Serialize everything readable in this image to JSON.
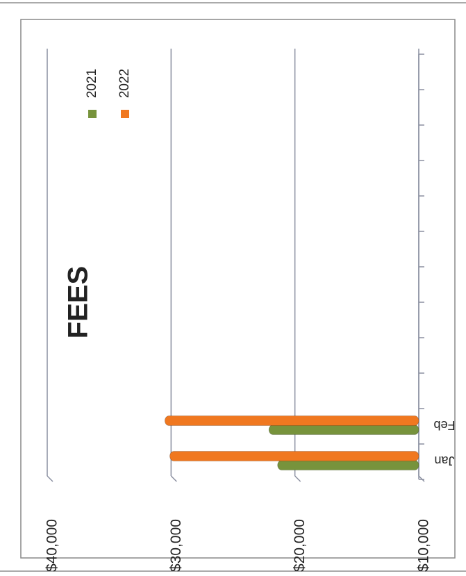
{
  "chart_data": {
    "type": "bar",
    "orientation": "horizontal",
    "title": "FEES",
    "categories": [
      "Jan",
      "Feb",
      null,
      null,
      null,
      null,
      null,
      null,
      null,
      null,
      null,
      null
    ],
    "series": [
      {
        "name": "2021",
        "color": "#77933c",
        "values": [
          21400,
          22100,
          null,
          null,
          null,
          null,
          null,
          null,
          null,
          null,
          null,
          null
        ]
      },
      {
        "name": "2022",
        "color": "#f07820",
        "values": [
          30100,
          30500,
          null,
          null,
          null,
          null,
          null,
          null,
          null,
          null,
          null,
          null
        ]
      }
    ],
    "ylim": [
      10000,
      40000
    ],
    "yticks": [
      {
        "value": 10000,
        "label": "$10,000"
      },
      {
        "value": 20000,
        "label": "$20,000"
      },
      {
        "value": 30000,
        "label": "$30,000"
      },
      {
        "value": 40000,
        "label": "$40,000"
      }
    ],
    "grid": true
  }
}
